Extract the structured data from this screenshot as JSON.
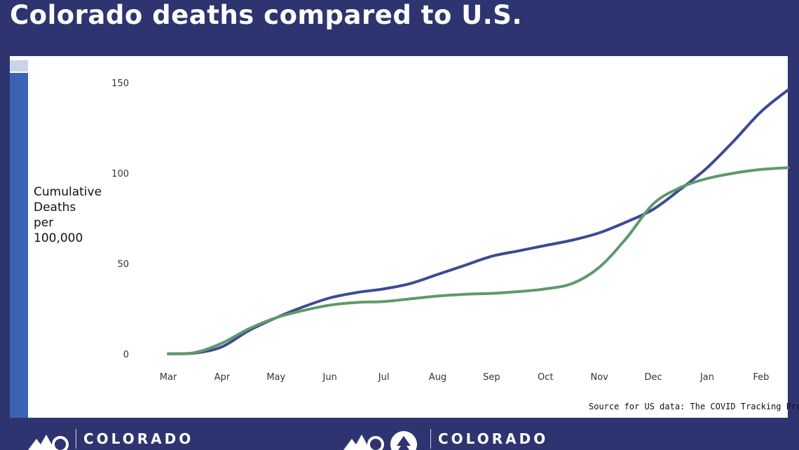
{
  "title": "Colorado deaths compared to U.S.",
  "source_note": "Source for US data: The COVID Tracking Project,",
  "footer": {
    "logo_left": "COLORADO",
    "logo_right": "COLORADO"
  },
  "icons": [
    "colorado-logo-icon",
    "colorado-logo-icon",
    "tree-seal-icon"
  ],
  "colors": {
    "background": "#2e3470",
    "us_line": "#3d4a94",
    "colorado_line": "#5e9a6a",
    "accent_strip": "#3a64b3"
  },
  "chart_data": {
    "type": "line",
    "ylabel": "Cumulative\nDeaths\nper\n100,000",
    "xlabel": "",
    "title": "",
    "ylim": [
      0,
      150
    ],
    "y_ticks": [
      0,
      50,
      100,
      150
    ],
    "x_ticks": [
      "Mar",
      "Apr",
      "May",
      "Jun",
      "Jul",
      "Aug",
      "Sep",
      "Oct",
      "Nov",
      "Dec",
      "Jan",
      "Feb"
    ],
    "x_month_index": [
      0,
      0.5,
      1,
      1.5,
      2,
      2.5,
      3,
      3.5,
      4,
      4.5,
      5,
      5.5,
      6,
      6.5,
      7,
      7.5,
      8,
      8.5,
      9,
      9.5,
      10,
      10.5,
      11,
      11.5
    ],
    "series": [
      {
        "color": "#3d4a94",
        "values": [
          0.1,
          0.5,
          4,
          13,
          20,
          26,
          31,
          34,
          36,
          39,
          44,
          49,
          54,
          57,
          60,
          63,
          67,
          73,
          80,
          91,
          103,
          118,
          134,
          146
        ]
      },
      {
        "color": "#5e9a6a",
        "values": [
          0.1,
          0.8,
          6,
          14,
          20,
          24,
          27,
          28.5,
          29,
          30.5,
          32,
          33,
          33.5,
          34.5,
          36,
          39,
          48,
          64,
          83,
          92,
          97,
          100,
          102,
          103
        ]
      }
    ]
  }
}
